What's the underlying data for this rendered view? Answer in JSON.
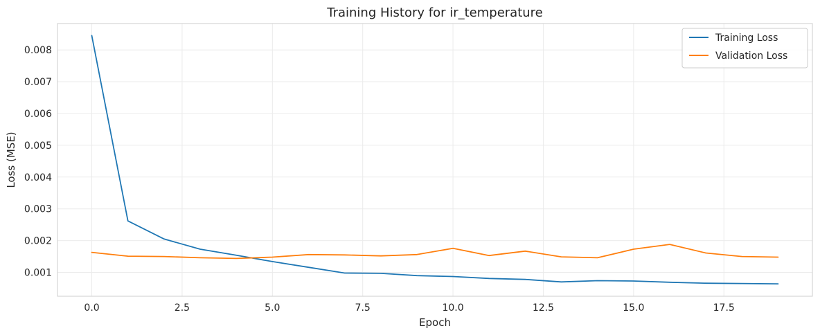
{
  "chart_data": {
    "type": "line",
    "title": "Training History for ir_temperature",
    "xlabel": "Epoch",
    "ylabel": "Loss (MSE)",
    "xlim": [
      -0.95,
      19.95
    ],
    "ylim": [
      0.00025,
      0.00883
    ],
    "xticks": [
      0.0,
      2.5,
      5.0,
      7.5,
      10.0,
      12.5,
      15.0,
      17.5
    ],
    "xtick_labels": [
      "0.0",
      "2.5",
      "5.0",
      "7.5",
      "10.0",
      "12.5",
      "15.0",
      "17.5"
    ],
    "yticks": [
      0.001,
      0.002,
      0.003,
      0.004,
      0.005,
      0.006,
      0.007,
      0.008
    ],
    "ytick_labels": [
      "0.001",
      "0.002",
      "0.003",
      "0.004",
      "0.005",
      "0.006",
      "0.007",
      "0.008"
    ],
    "grid": true,
    "legend_position": "top-right",
    "x": [
      0,
      1,
      2,
      3,
      4,
      5,
      6,
      7,
      8,
      9,
      10,
      11,
      12,
      13,
      14,
      15,
      16,
      17,
      18,
      19
    ],
    "series": [
      {
        "name": "Training Loss",
        "color": "#1f77b4",
        "values": [
          0.00845,
          0.00262,
          0.00205,
          0.00173,
          0.00154,
          0.00134,
          0.00116,
          0.00098,
          0.00097,
          0.0009,
          0.00087,
          0.00081,
          0.00078,
          0.0007,
          0.00074,
          0.00073,
          0.00069,
          0.00066,
          0.00065,
          0.00064
        ]
      },
      {
        "name": "Validation Loss",
        "color": "#ff7f0e",
        "values": [
          0.00163,
          0.00151,
          0.0015,
          0.00146,
          0.00144,
          0.00148,
          0.00156,
          0.00155,
          0.00152,
          0.00156,
          0.00176,
          0.00153,
          0.00167,
          0.00149,
          0.00146,
          0.00173,
          0.00188,
          0.00161,
          0.0015,
          0.00148
        ]
      }
    ]
  }
}
